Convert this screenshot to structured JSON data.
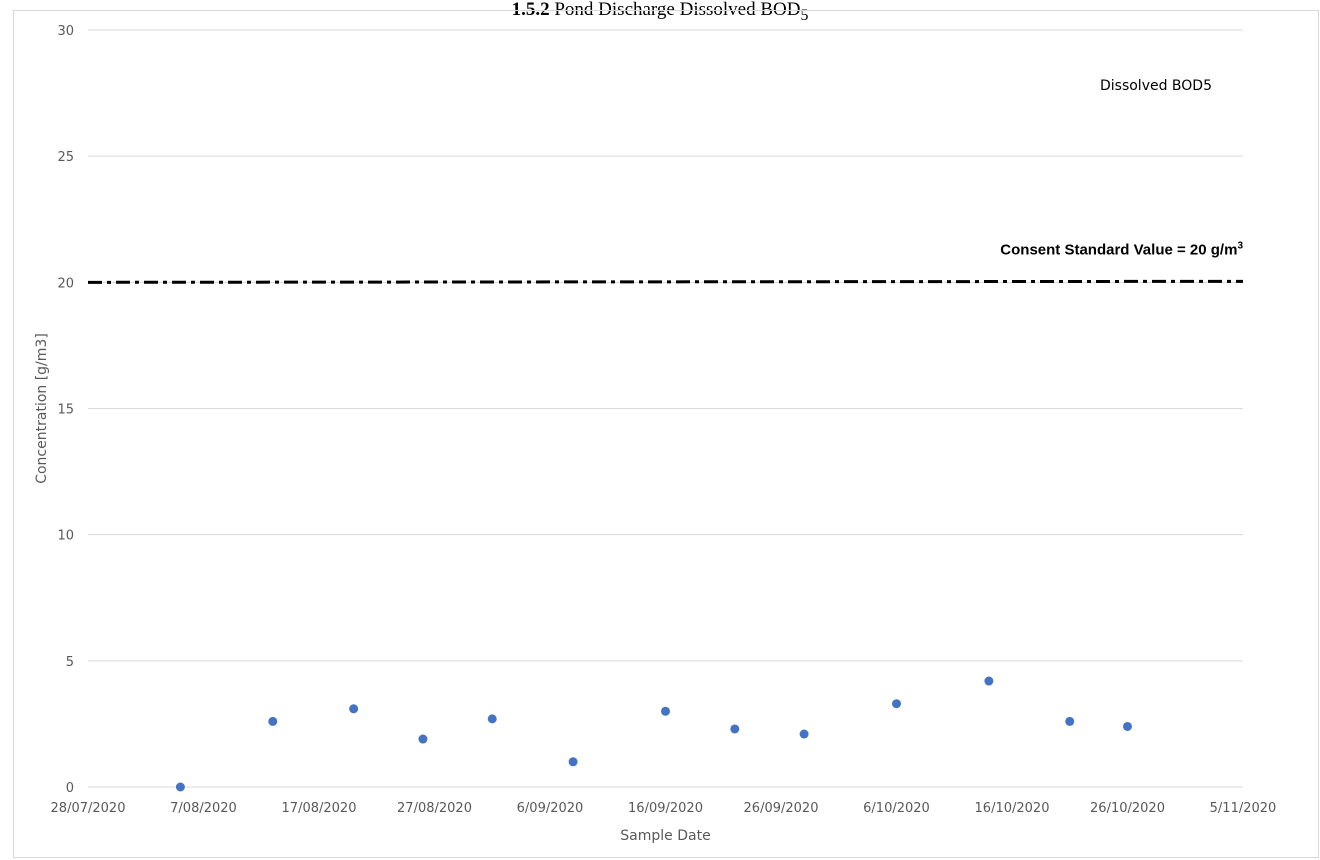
{
  "page_title": {
    "number": "1.5.2",
    "text": "Pond Discharge Dissolved BOD",
    "subscript": "5"
  },
  "colors": {
    "point": "#4472c4",
    "gridline": "#d9d9d9",
    "consent_line": "#000000"
  },
  "chart_data": {
    "type": "scatter",
    "title": "",
    "xlabel": "Sample Date",
    "ylabel": "Concentration [g/m3]",
    "xlim": [
      "2020-07-28",
      "2020-11-05"
    ],
    "ylim": [
      0,
      30
    ],
    "grid": true,
    "x_tick_labels": [
      "28/07/2020",
      "7/08/2020",
      "17/08/2020",
      "27/08/2020",
      "6/09/2020",
      "16/09/2020",
      "26/09/2020",
      "6/10/2020",
      "16/10/2020",
      "26/10/2020",
      "5/11/2020"
    ],
    "y_ticks": [
      0,
      5,
      10,
      15,
      20,
      25,
      30
    ],
    "legend": {
      "label": "Dissolved BOD5",
      "position": "top-right"
    },
    "series": [
      {
        "name": "Dissolved BOD5",
        "points": [
          {
            "x": "2020-08-05",
            "y": 0
          },
          {
            "x": "2020-08-13",
            "y": 2.6
          },
          {
            "x": "2020-08-20",
            "y": 3.1
          },
          {
            "x": "2020-08-26",
            "y": 1.9
          },
          {
            "x": "2020-09-01",
            "y": 2.7
          },
          {
            "x": "2020-09-08",
            "y": 1.0
          },
          {
            "x": "2020-09-16",
            "y": 3.0
          },
          {
            "x": "2020-09-22",
            "y": 2.3
          },
          {
            "x": "2020-09-28",
            "y": 2.1
          },
          {
            "x": "2020-10-06",
            "y": 3.3
          },
          {
            "x": "2020-10-14",
            "y": 4.2
          },
          {
            "x": "2020-10-21",
            "y": 2.6
          },
          {
            "x": "2020-10-26",
            "y": 2.4
          }
        ]
      }
    ],
    "reference_line": {
      "label": "Consent Standard Value = 20 g/m",
      "superscript": "3",
      "y": 20,
      "style": "dash-dot"
    }
  }
}
